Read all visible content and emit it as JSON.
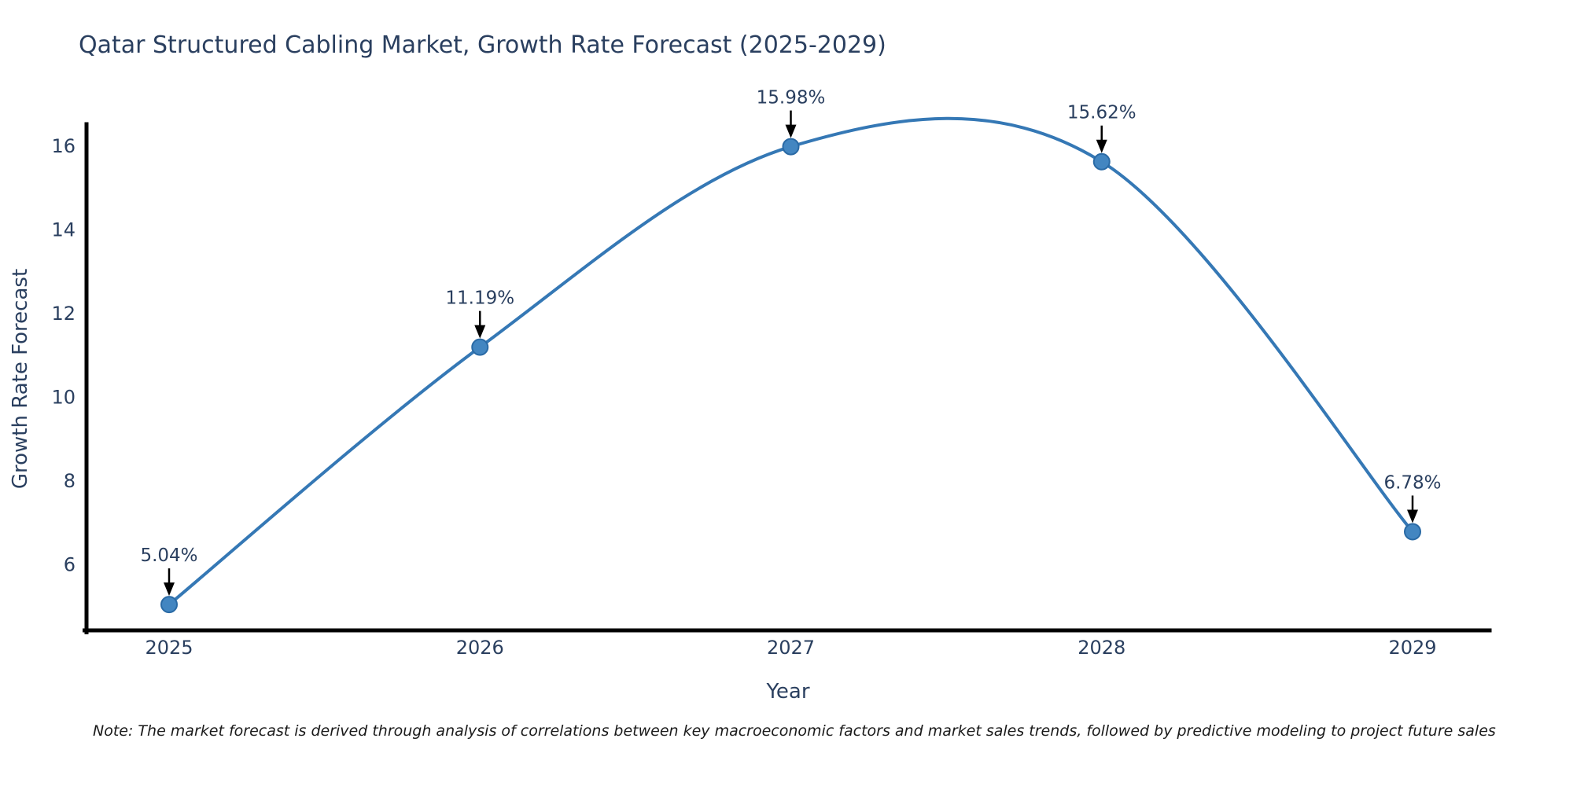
{
  "title": "Qatar Structured Cabling Market, Growth Rate Forecast (2025-2029)",
  "note": "Note: The market forecast is derived through analysis of correlations between key macroeconomic factors and market sales trends, followed by predictive modeling to project future sales",
  "chart_data": {
    "type": "line",
    "title": "Qatar Structured Cabling Market, Growth Rate Forecast (2025-2029)",
    "xlabel": "Year",
    "ylabel": "Growth Rate Forecast",
    "x": [
      "2025",
      "2026",
      "2027",
      "2028",
      "2029"
    ],
    "values": [
      5.04,
      11.19,
      15.98,
      15.62,
      6.78
    ],
    "point_labels": [
      "5.04%",
      "11.19%",
      "15.98%",
      "15.62%",
      "6.78%"
    ],
    "yticks": [
      6,
      8,
      10,
      12,
      14,
      16
    ],
    "ylim": [
      4.4,
      16.6
    ],
    "line_shape": "spline",
    "grid": false,
    "legend_position": "none",
    "colors": {
      "line": "#3578b5",
      "marker_fill": "#4386c1",
      "marker_edge": "#2a6aa5",
      "arrow": "#000000",
      "text": "#2a3f5f",
      "axis": "#000000",
      "background": "#ffffff"
    }
  }
}
